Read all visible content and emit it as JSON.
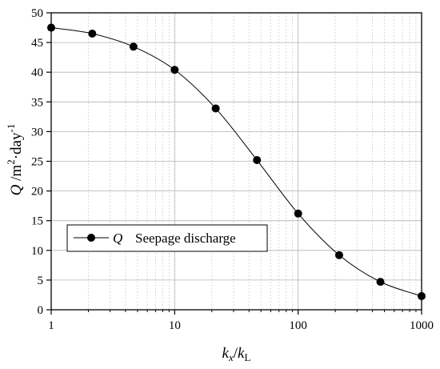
{
  "chart_data": {
    "type": "line",
    "x_scale": "log",
    "xlim": [
      1,
      1000
    ],
    "ylim": [
      0,
      50
    ],
    "x_ticks": [
      1,
      10,
      100,
      1000
    ],
    "x_tick_labels": [
      "1",
      "10",
      "100",
      "1000"
    ],
    "y_ticks": [
      0,
      5,
      10,
      15,
      20,
      25,
      30,
      35,
      40,
      45,
      50
    ],
    "y_tick_labels": [
      "0",
      "5",
      "10",
      "15",
      "20",
      "25",
      "30",
      "35",
      "40",
      "45",
      "50"
    ],
    "grid": true,
    "xlabel": {
      "k1": "k",
      "s1": "x",
      "slash": "/",
      "k2": "k",
      "s2": "L"
    },
    "ylabel": {
      "q": "Q",
      "unit1": " /m",
      "sup1": "2",
      "unit2": "·day",
      "sup2": "-1"
    },
    "legend": {
      "position": "bottom-left",
      "symbol": "Q",
      "label": "Seepage discharge"
    },
    "series": [
      {
        "name": "Q  Seepage discharge",
        "color": "#000000",
        "marker": "filled-circle",
        "x": [
          1,
          2.15,
          4.64,
          10,
          21.5,
          46.4,
          100,
          215,
          464,
          1000
        ],
        "y": [
          47.5,
          46.5,
          44.3,
          40.4,
          33.9,
          25.2,
          16.2,
          9.2,
          4.7,
          2.3
        ]
      }
    ]
  }
}
